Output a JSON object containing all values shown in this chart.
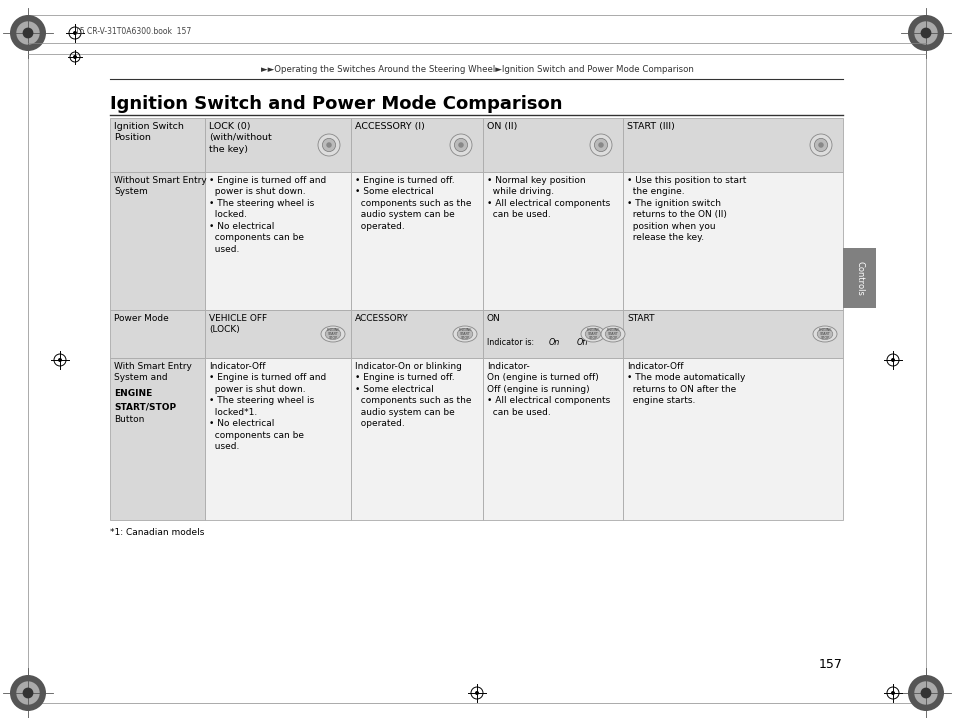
{
  "page_title": "Ignition Switch and Power Mode Comparison",
  "breadcrumb": "►►Operating the Switches Around the Steering Wheel►Ignition Switch and Power Mode Comparison",
  "header_text": "15 CR-V-31T0A6300.book  157",
  "page_number": "157",
  "footnote": "*1: Canadian models",
  "controls_label": "Controls",
  "bg_color": "#ffffff",
  "header_bg": "#e0e0e0",
  "body_bg": "#f5f5f5",
  "border_color": "#aaaaaa",
  "text_color": "#000000",
  "gray_tab": "#808080"
}
